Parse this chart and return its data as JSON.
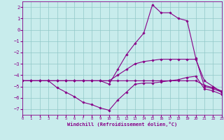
{
  "bg_color": "#c8ecec",
  "grid_color": "#90c8c8",
  "line_color": "#880088",
  "xlabel": "Windchill (Refroidissement éolien,°C)",
  "xlim": [
    0,
    23
  ],
  "ylim": [
    -7.5,
    2.5
  ],
  "yticks": [
    2,
    1,
    0,
    -1,
    -2,
    -3,
    -4,
    -5,
    -6,
    -7
  ],
  "xticks": [
    0,
    1,
    2,
    3,
    4,
    5,
    6,
    7,
    8,
    9,
    10,
    11,
    12,
    13,
    14,
    15,
    16,
    17,
    18,
    19,
    20,
    21,
    22,
    23
  ],
  "curve_peak": {
    "x": [
      0,
      1,
      2,
      3,
      4,
      5,
      6,
      7,
      8,
      9,
      10,
      11,
      12,
      13,
      14,
      15,
      16,
      17,
      18,
      19,
      20,
      21,
      22,
      23
    ],
    "y": [
      -4.5,
      -4.5,
      -4.5,
      -4.5,
      -4.5,
      -4.5,
      -4.5,
      -4.5,
      -4.5,
      -4.5,
      -4.8,
      -3.5,
      -2.2,
      -1.2,
      -0.3,
      2.2,
      1.5,
      1.5,
      1.0,
      0.8,
      -2.5,
      -5.0,
      -5.2,
      -5.5
    ]
  },
  "curve_dip": {
    "x": [
      0,
      1,
      2,
      3,
      4,
      5,
      6,
      7,
      8,
      9,
      10,
      11,
      12,
      13,
      14,
      15,
      16,
      17,
      18,
      19,
      20,
      21,
      22,
      23
    ],
    "y": [
      -4.5,
      -4.5,
      -4.5,
      -4.5,
      -5.1,
      -5.5,
      -5.9,
      -6.4,
      -6.6,
      -6.9,
      -7.1,
      -6.2,
      -5.5,
      -4.8,
      -4.7,
      -4.7,
      -4.6,
      -4.5,
      -4.4,
      -4.2,
      -4.1,
      -5.2,
      -5.4,
      -5.7
    ]
  },
  "curve_upper": {
    "x": [
      0,
      1,
      2,
      3,
      4,
      5,
      6,
      7,
      8,
      9,
      10,
      11,
      12,
      13,
      14,
      15,
      16,
      17,
      18,
      19,
      20,
      21,
      22,
      23
    ],
    "y": [
      -4.5,
      -4.5,
      -4.5,
      -4.5,
      -4.5,
      -4.5,
      -4.5,
      -4.5,
      -4.5,
      -4.5,
      -4.5,
      -4.0,
      -3.5,
      -3.0,
      -2.8,
      -2.7,
      -2.6,
      -2.6,
      -2.6,
      -2.6,
      -2.6,
      -4.5,
      -5.0,
      -5.5
    ]
  },
  "curve_flat": {
    "x": [
      0,
      1,
      2,
      3,
      4,
      5,
      6,
      7,
      8,
      9,
      10,
      11,
      12,
      13,
      14,
      15,
      16,
      17,
      18,
      19,
      20,
      21,
      22,
      23
    ],
    "y": [
      -4.5,
      -4.5,
      -4.5,
      -4.5,
      -4.5,
      -4.5,
      -4.5,
      -4.5,
      -4.5,
      -4.5,
      -4.5,
      -4.5,
      -4.5,
      -4.5,
      -4.5,
      -4.5,
      -4.5,
      -4.5,
      -4.5,
      -4.5,
      -4.5,
      -4.9,
      -5.1,
      -5.4
    ]
  }
}
